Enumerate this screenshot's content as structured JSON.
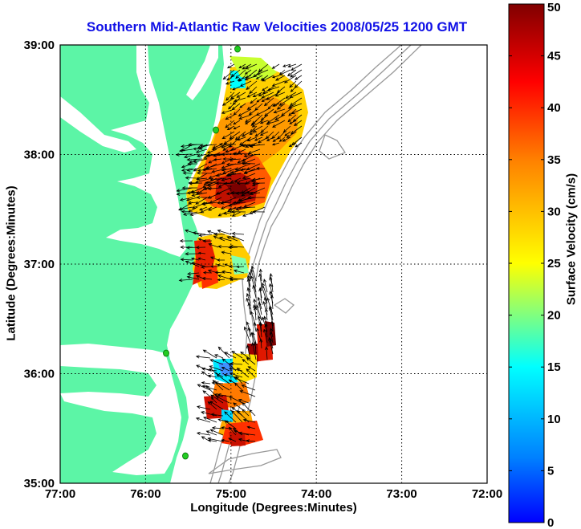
{
  "title": "Southern Mid-Atlantic Raw Velocities 2008/05/25 1200 GMT",
  "xlabel": "Longitude (Degrees:Minutes)",
  "ylabel": "Latitude (Degrees:Minutes)",
  "colorbar": {
    "label": "Surface Velocity (cm/s)",
    "min": 0,
    "max": 50,
    "ticks": [
      "0",
      "5",
      "10",
      "15",
      "20",
      "25",
      "30",
      "35",
      "40",
      "45",
      "50"
    ]
  },
  "axes": {
    "lon_range": [
      -77,
      -72
    ],
    "lat_range": [
      35,
      39
    ],
    "xticks": [
      "77:00",
      "76:00",
      "75:00",
      "74:00",
      "73:00",
      "72:00"
    ],
    "yticks": [
      "35:00",
      "36:00",
      "37:00",
      "38:00",
      "39:00"
    ],
    "grid": "dotted"
  },
  "colors": {
    "land": "#5cf5a6",
    "title": "#1010e6",
    "bathymetry": "#999999",
    "station": "#22cc22"
  }
}
